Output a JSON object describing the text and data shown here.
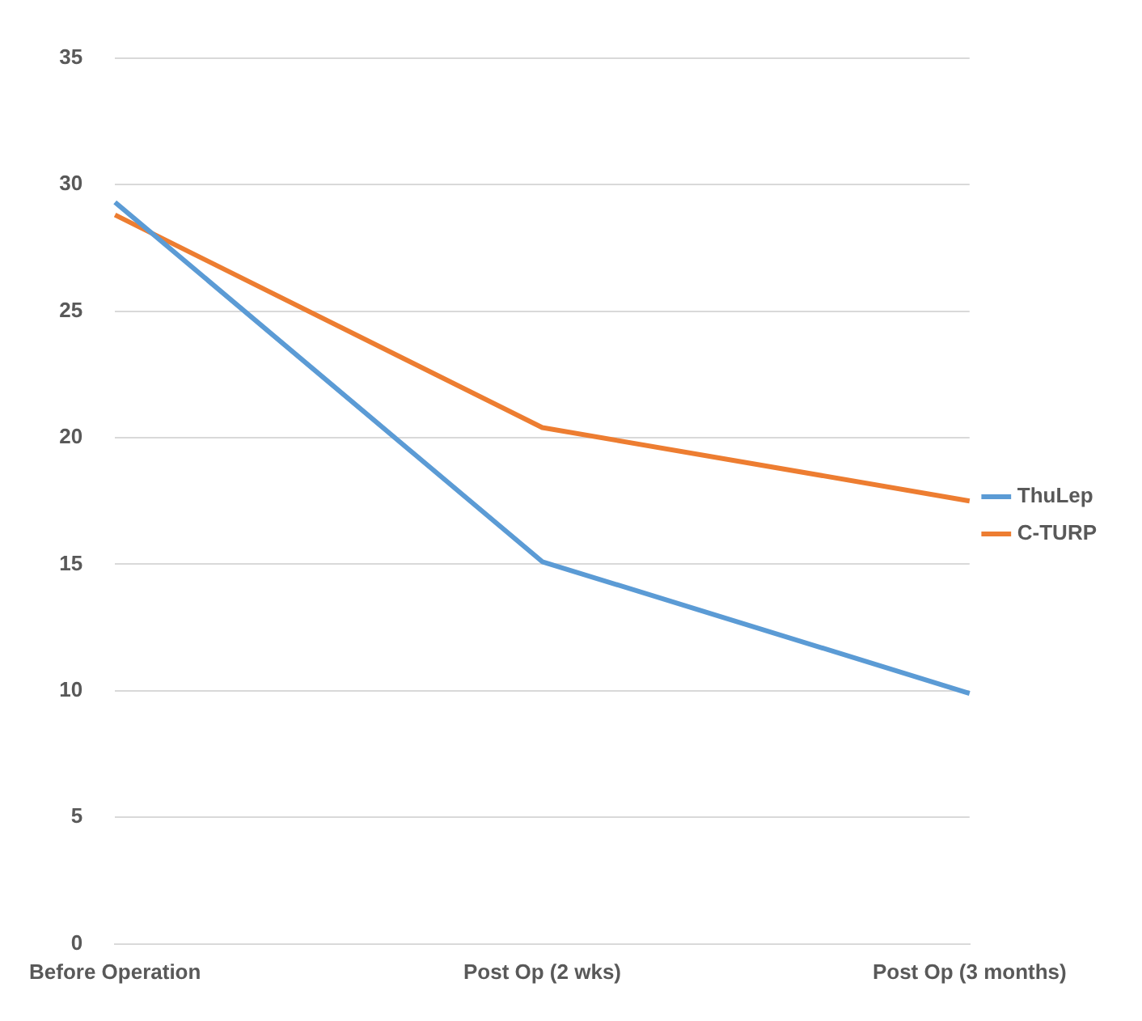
{
  "chart_data": {
    "type": "line",
    "categories": [
      "Before Operation",
      "Post Op (2 wks)",
      "Post Op (3 months)"
    ],
    "series": [
      {
        "name": "ThuLep",
        "color": "#5b9bd5",
        "values": [
          29.3,
          15.1,
          9.9
        ]
      },
      {
        "name": "C-TURP",
        "color": "#ed7d31",
        "values": [
          28.8,
          20.4,
          17.5
        ]
      }
    ],
    "ylim": [
      0,
      35
    ],
    "yticks": [
      0,
      5,
      10,
      15,
      20,
      25,
      30,
      35
    ],
    "grid": "y",
    "legend": "right",
    "marker": "none"
  }
}
